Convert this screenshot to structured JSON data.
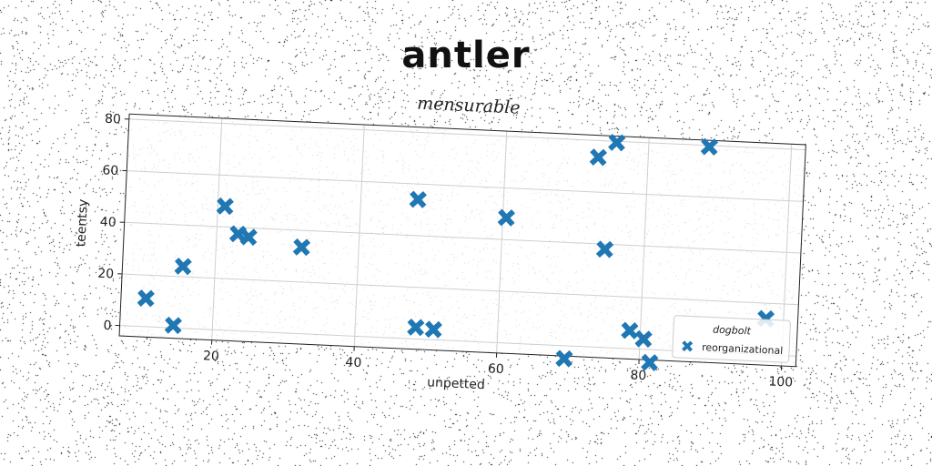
{
  "chart_data": {
    "type": "scatter",
    "suptitle": "antler",
    "title": "mensurable",
    "xlabel": "unpetted",
    "ylabel": "teentsy",
    "xlim": [
      7,
      102
    ],
    "ylim": [
      -4,
      82
    ],
    "xticks": [
      20,
      40,
      60,
      80,
      100
    ],
    "yticks": [
      0,
      20,
      40,
      60,
      80
    ],
    "grid": true,
    "legend": {
      "title": "dogbolt",
      "placement": "lower-right",
      "entries": [
        "reorganizational"
      ]
    },
    "series": [
      {
        "name": "reorganizational",
        "color": "#1f77b4",
        "marker": "X",
        "points": [
          [
            10.5,
            11
          ],
          [
            14.5,
            1
          ],
          [
            15.5,
            24
          ],
          [
            21,
            48
          ],
          [
            23,
            37.5
          ],
          [
            24.5,
            36.5
          ],
          [
            32,
            33.5
          ],
          [
            48,
            54
          ],
          [
            48.5,
            4.5
          ],
          [
            51,
            4
          ],
          [
            60.5,
            48.5
          ],
          [
            69.5,
            -5
          ],
          [
            73,
            73.5
          ],
          [
            75.5,
            79.5
          ],
          [
            74.5,
            38
          ],
          [
            78.5,
            7
          ],
          [
            80.5,
            4
          ],
          [
            81.5,
            -5
          ],
          [
            88.5,
            79.5
          ],
          [
            97.5,
            14
          ]
        ]
      }
    ]
  }
}
